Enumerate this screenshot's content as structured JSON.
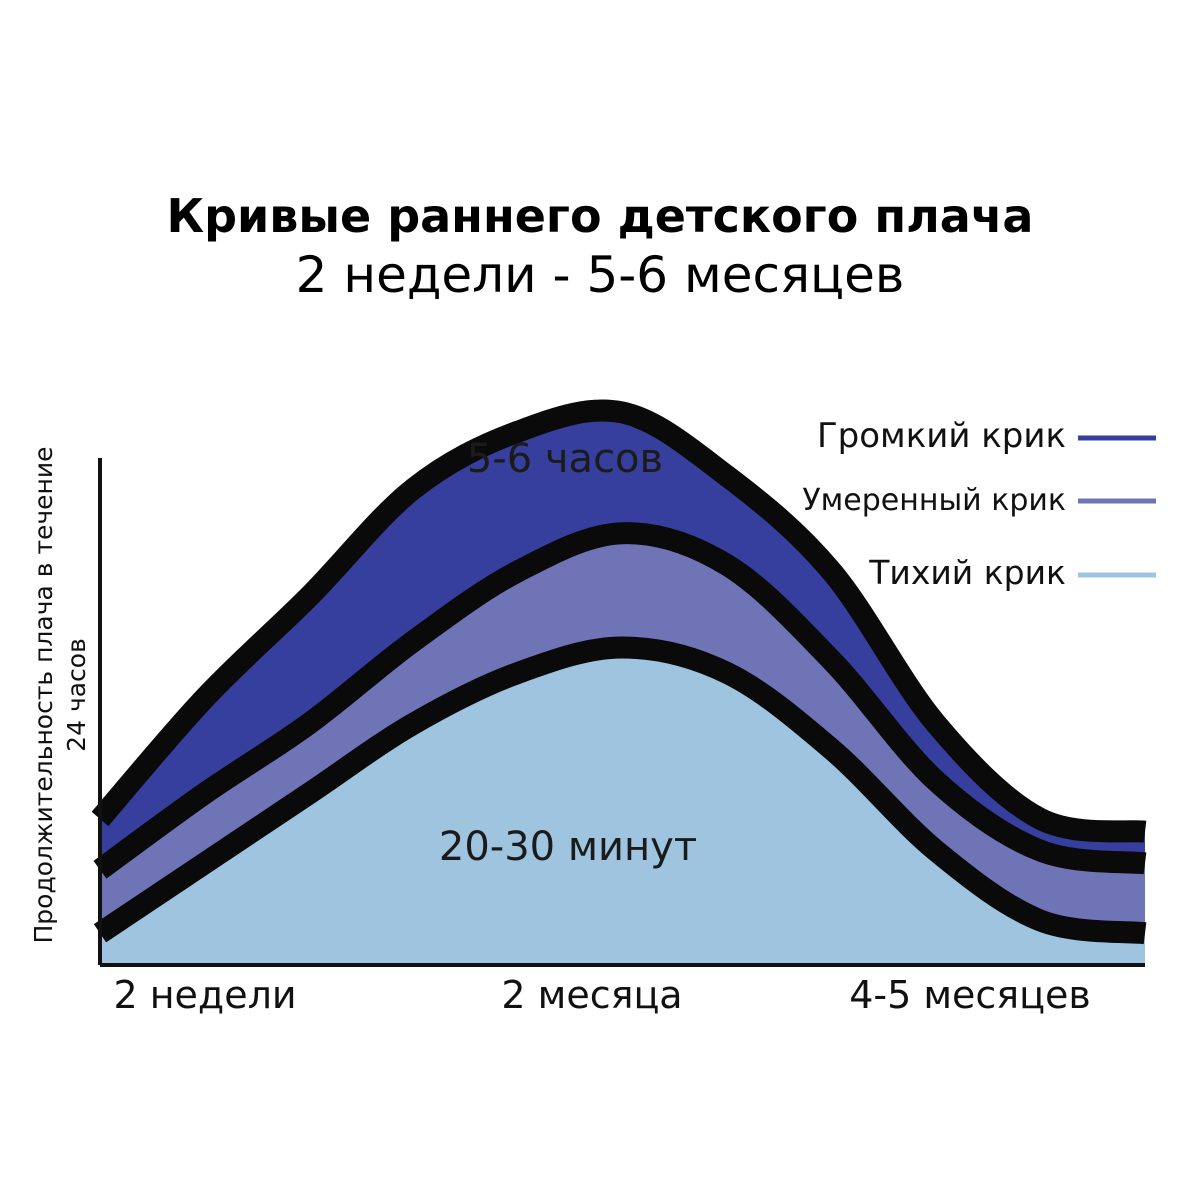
{
  "chart_data": {
    "type": "area",
    "title": "Кривые раннего детского плача",
    "subtitle": "2 недели - 5-6 месяцев",
    "ylabel": "Продолжительность плача в течение 24 часов",
    "xlabel": "",
    "categories": [
      "2 недели",
      "2 месяца",
      "4-5 месяцев"
    ],
    "x": [
      0,
      1,
      2,
      3,
      4,
      5,
      6,
      7,
      8,
      9,
      10
    ],
    "ylim": [
      0,
      10
    ],
    "grid": false,
    "stacking": "stacked",
    "series": [
      {
        "name": "Тихий крик",
        "color": "#9ec4e0",
        "values": [
          0.5,
          1.6,
          2.7,
          3.8,
          4.6,
          5.0,
          4.6,
          3.4,
          1.8,
          0.7,
          0.5
        ]
      },
      {
        "name": "Умеренный крик",
        "color": "#6f74b6",
        "values": [
          1.0,
          1.1,
          1.1,
          1.3,
          1.6,
          1.8,
          1.7,
          1.4,
          1.1,
          1.1,
          1.1
        ]
      },
      {
        "name": "Громкий крик",
        "color": "#373f9e",
        "values": [
          0.8,
          1.5,
          2.0,
          2.4,
          2.2,
          1.9,
          1.4,
          1.4,
          0.9,
          0.5,
          0.5
        ]
      }
    ],
    "annotations": [
      {
        "text": "5-6 часов",
        "color": "#1b1b1b"
      },
      {
        "text": "20-30 минут",
        "color": "#1b1b1b"
      }
    ],
    "legend_placement": "top-right"
  }
}
